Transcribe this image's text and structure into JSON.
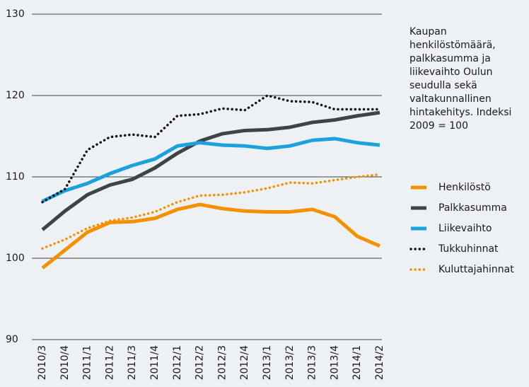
{
  "chart_data": {
    "type": "line",
    "annotation": "Kaupan henkilöstömäärä, palkkasumma ja liikevaihto Oulun seudulla sekä valtakunnallinen hintakehitys. Indeksi 2009 = 100",
    "categories": [
      "2010/3",
      "2010/4",
      "2011/1",
      "2011/2",
      "2011/3",
      "2011/4",
      "2012/1",
      "2012/2",
      "2012/3",
      "2012/4",
      "2013/1",
      "2013/2",
      "2013/3",
      "2013/4",
      "2014/1",
      "2014/2"
    ],
    "series": [
      {
        "name": "Henkilöstö",
        "color": "#f39200",
        "style": "solid",
        "values": [
          98.8,
          101,
          103.2,
          104.4,
          104.5,
          104.9,
          106,
          106.6,
          106.1,
          105.8,
          105.7,
          105.7,
          106,
          105.1,
          102.7,
          101.5
        ]
      },
      {
        "name": "Palkkasumma",
        "color": "#3c4446",
        "style": "solid",
        "values": [
          103.5,
          105.8,
          107.8,
          109,
          109.7,
          111.1,
          112.9,
          114.4,
          115.3,
          115.7,
          115.8,
          116.1,
          116.7,
          117,
          117.5,
          117.9
        ]
      },
      {
        "name": "Liikevaihto",
        "color": "#1ba1dc",
        "style": "solid",
        "values": [
          107,
          108.3,
          109.2,
          110.4,
          111.4,
          112.2,
          113.8,
          114.2,
          113.9,
          113.8,
          113.5,
          113.8,
          114.5,
          114.7,
          114.2,
          113.9
        ]
      },
      {
        "name": "Tukkuhinnat",
        "color": "#111111",
        "style": "dotted",
        "values": [
          106.9,
          108.5,
          113.3,
          114.9,
          115.2,
          114.9,
          117.5,
          117.7,
          118.4,
          118.2,
          120,
          119.3,
          119.2,
          118.3,
          118.3,
          118.3
        ]
      },
      {
        "name": "Kuluttajahinnat",
        "color": "#f39200",
        "style": "dotted",
        "values": [
          101.2,
          102.3,
          103.7,
          104.6,
          105,
          105.7,
          106.9,
          107.7,
          107.8,
          108.1,
          108.6,
          109.3,
          109.2,
          109.6,
          110,
          110.3
        ]
      }
    ],
    "ylim": [
      90,
      130
    ],
    "yticks": [
      90,
      100,
      110,
      120,
      130
    ],
    "grid": true,
    "legend": "right"
  }
}
